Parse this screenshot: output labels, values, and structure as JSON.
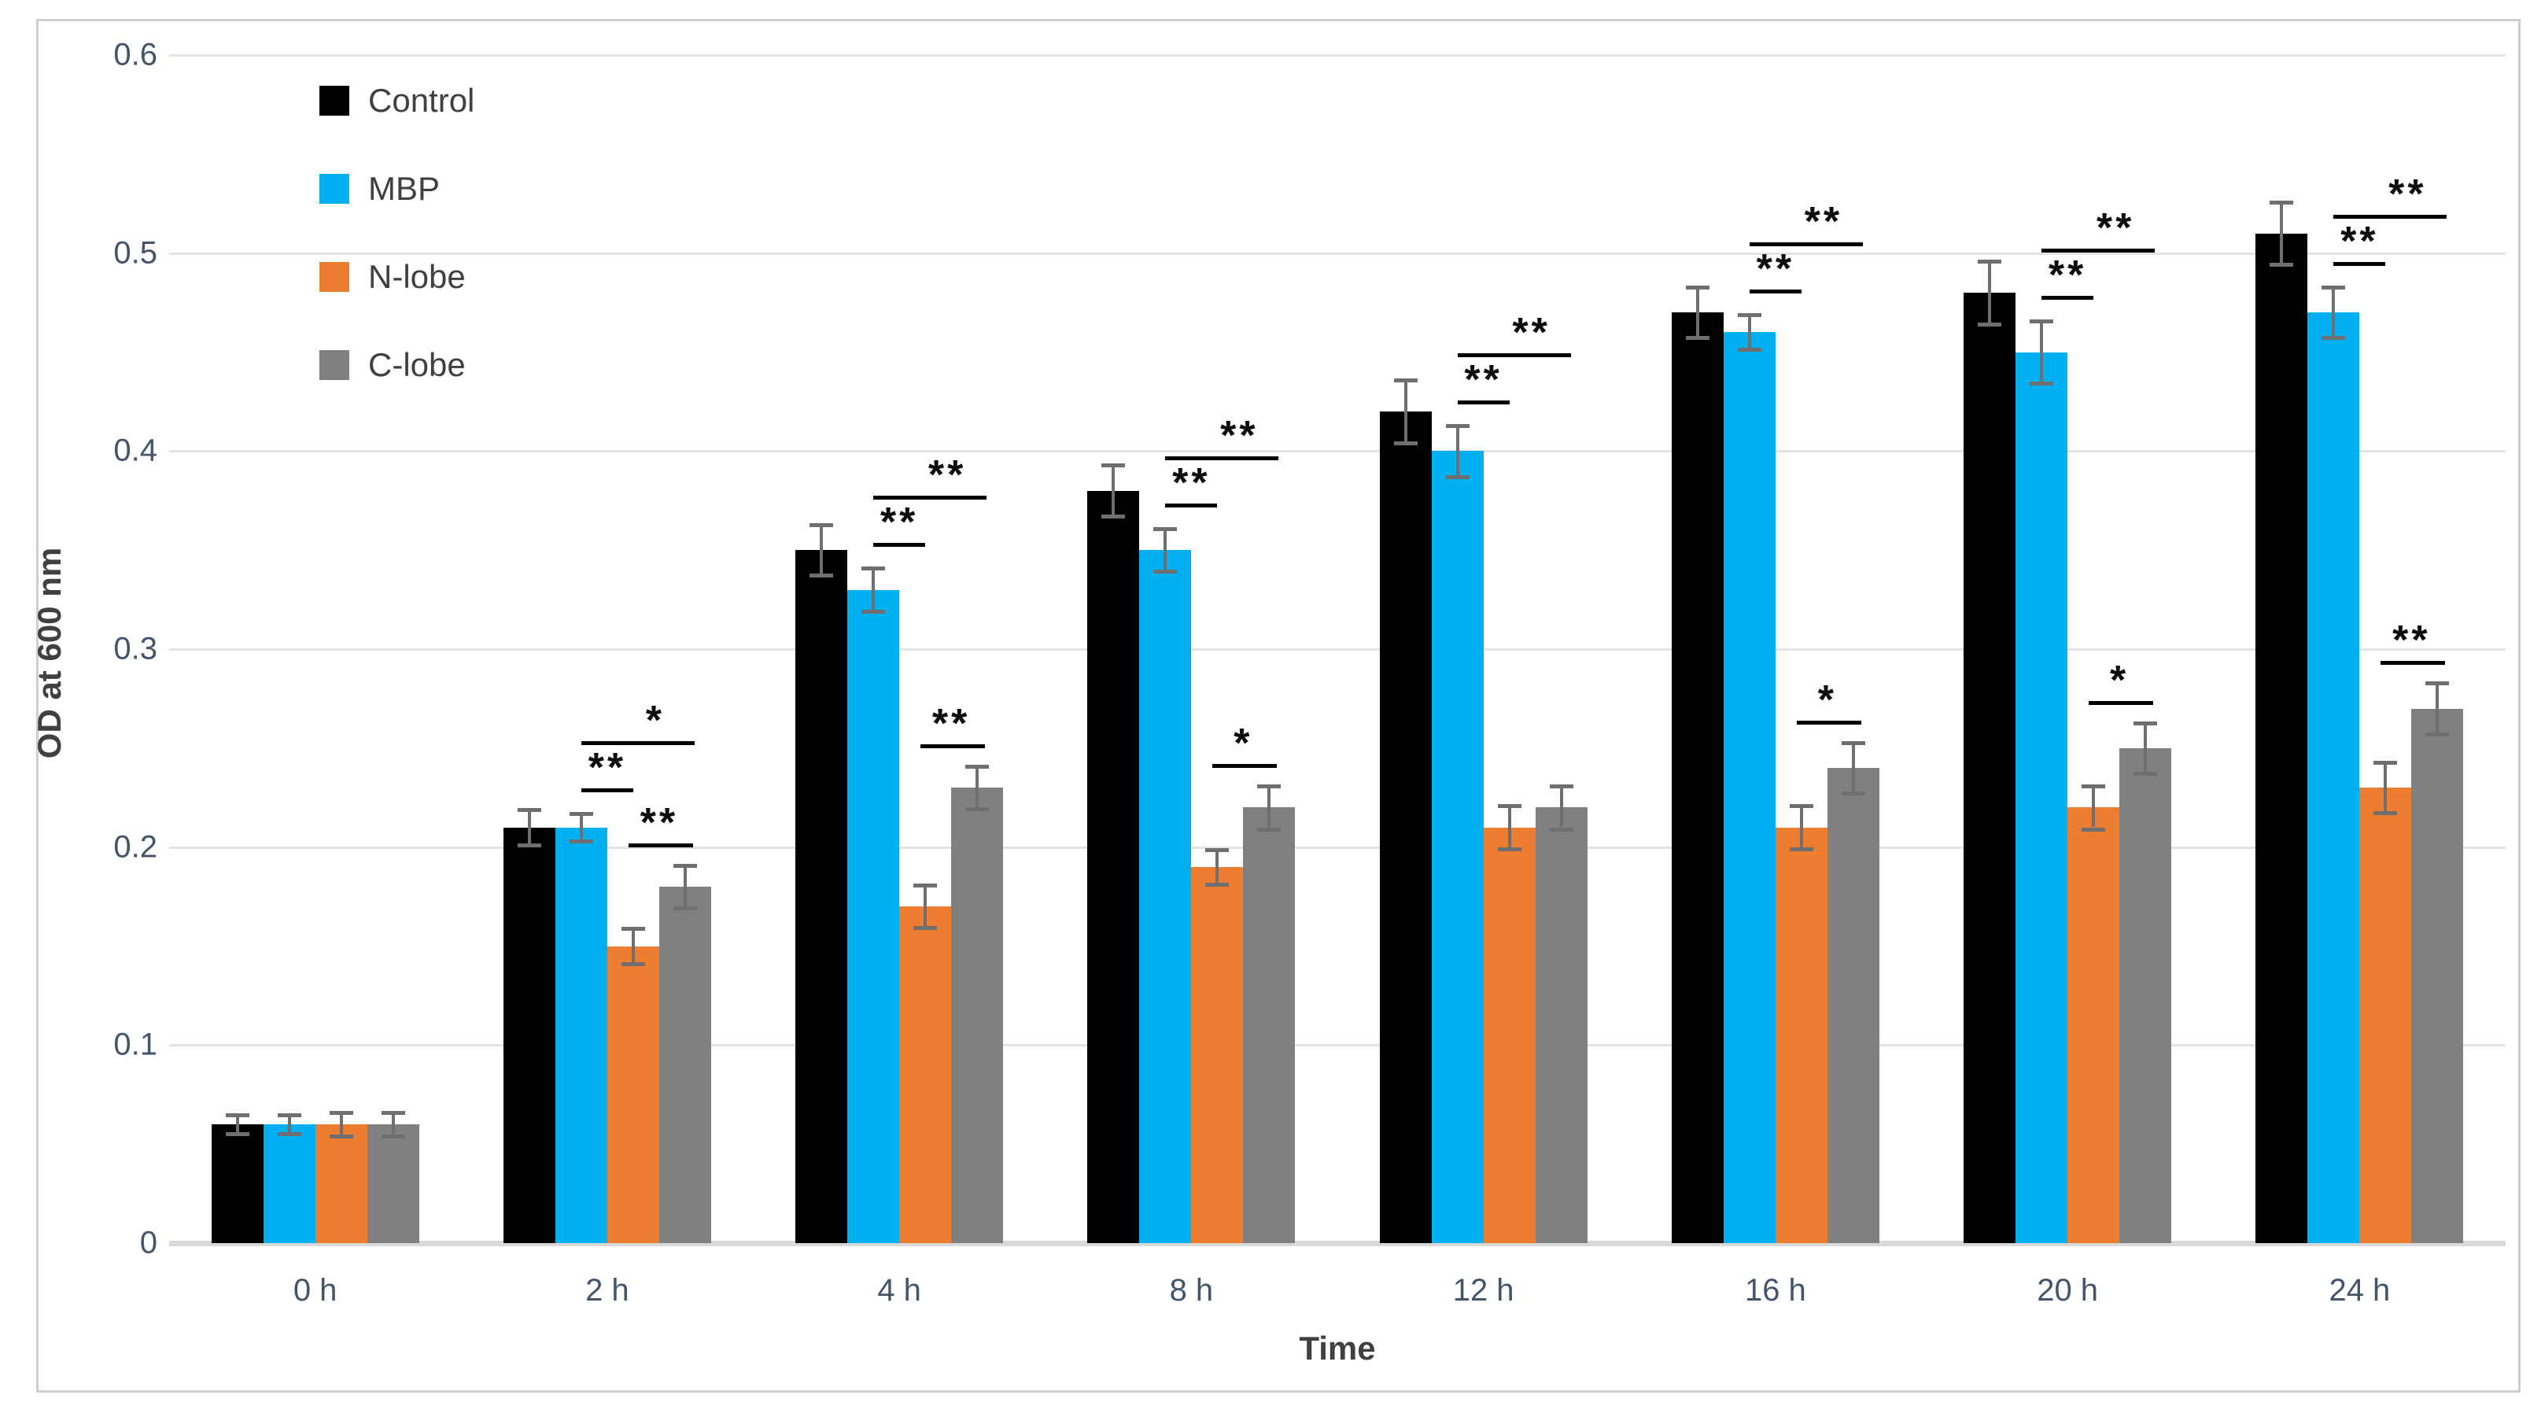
{
  "chart_data": {
    "type": "bar",
    "title": "",
    "xlabel": "Time",
    "ylabel": "OD at 600 nm",
    "ylim": [
      0,
      0.6
    ],
    "ytick_labels": [
      "0",
      "0.1",
      "0.2",
      "0.3",
      "0.4",
      "0.5",
      "0.6"
    ],
    "categories": [
      "0 h",
      "2 h",
      "4 h",
      "8 h",
      "12 h",
      "16 h",
      "20 h",
      "24 h"
    ],
    "grid": "horizontal",
    "legend_position": "top-left-inside",
    "series": [
      {
        "name": "Control",
        "color": "#000000",
        "values": [
          0.06,
          0.21,
          0.35,
          0.38,
          0.42,
          0.47,
          0.48,
          0.51
        ],
        "errors": [
          0.004,
          0.008,
          0.012,
          0.012,
          0.015,
          0.012,
          0.015,
          0.015
        ]
      },
      {
        "name": "MBP",
        "color": "#00b0f0",
        "values": [
          0.06,
          0.21,
          0.33,
          0.35,
          0.4,
          0.46,
          0.45,
          0.47
        ],
        "errors": [
          0.004,
          0.006,
          0.01,
          0.01,
          0.012,
          0.008,
          0.015,
          0.012
        ]
      },
      {
        "name": "N-lobe",
        "color": "#ed7d31",
        "values": [
          0.06,
          0.15,
          0.17,
          0.19,
          0.21,
          0.21,
          0.22,
          0.23
        ],
        "errors": [
          0.005,
          0.008,
          0.01,
          0.008,
          0.01,
          0.01,
          0.01,
          0.012
        ]
      },
      {
        "name": "C-lobe",
        "color": "#808080",
        "values": [
          0.06,
          0.18,
          0.23,
          0.22,
          0.22,
          0.24,
          0.25,
          0.27
        ],
        "errors": [
          0.005,
          0.01,
          0.01,
          0.01,
          0.01,
          0.012,
          0.012,
          0.012
        ]
      }
    ],
    "significance": [
      {
        "category_index": 1,
        "mbp_vs_nlobe": "**",
        "mbp_vs_clobe": "*",
        "nlobe_vs_clobe": "**"
      },
      {
        "category_index": 2,
        "mbp_vs_nlobe": "**",
        "mbp_vs_clobe": "**",
        "nlobe_vs_clobe": "**"
      },
      {
        "category_index": 3,
        "mbp_vs_nlobe": "**",
        "mbp_vs_clobe": "**",
        "nlobe_vs_clobe": "*"
      },
      {
        "category_index": 4,
        "mbp_vs_nlobe": "**",
        "mbp_vs_clobe": "**",
        "nlobe_vs_clobe": null
      },
      {
        "category_index": 5,
        "mbp_vs_nlobe": "**",
        "mbp_vs_clobe": "**",
        "nlobe_vs_clobe": "*"
      },
      {
        "category_index": 6,
        "mbp_vs_nlobe": "**",
        "mbp_vs_clobe": "**",
        "nlobe_vs_clobe": "*"
      },
      {
        "category_index": 7,
        "mbp_vs_nlobe": "**",
        "mbp_vs_clobe": "**",
        "nlobe_vs_clobe": "**"
      }
    ],
    "colors": {
      "grid": "#e3e3e3",
      "axis_baseline": "#d9d9d9",
      "error_bar": "#6f6f6f",
      "sig_marker": "#0d0d0d",
      "text": "#404040",
      "tick_text": "#44546a",
      "frame_border": "#cfcfcf"
    }
  }
}
